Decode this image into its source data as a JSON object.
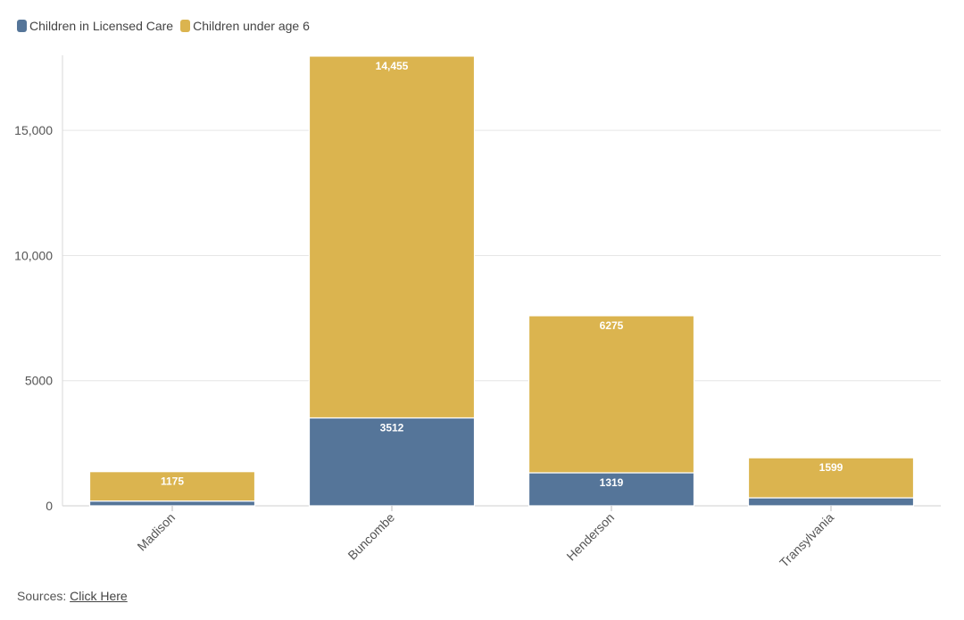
{
  "legend": {
    "items": [
      {
        "label": "Children in Licensed Care",
        "color": "#557599"
      },
      {
        "label": "Children under age 6",
        "color": "#dbb44f"
      }
    ]
  },
  "sources": {
    "label": "Sources:",
    "link_text": "Click Here"
  },
  "chart_data": {
    "type": "bar",
    "stacked": true,
    "categories": [
      "Madison",
      "Buncombe",
      "Henderson",
      "Transylvania"
    ],
    "series": [
      {
        "name": "Children in Licensed Care",
        "color": "#557599",
        "values": [
          190,
          3512,
          1319,
          320
        ],
        "labels": [
          "",
          "3512",
          "1319",
          ""
        ]
      },
      {
        "name": "Children under age 6",
        "color": "#dbb44f",
        "values": [
          1175,
          14455,
          6275,
          1599
        ],
        "labels": [
          "1175",
          "14,455",
          "6275",
          "1599"
        ]
      }
    ],
    "yticks": [
      0,
      5000,
      10000,
      15000
    ],
    "ytick_labels": [
      "0",
      "5000",
      "10,000",
      "15,000"
    ],
    "ylim": [
      0,
      18000
    ],
    "grid": true,
    "legend_position": "top-left",
    "xlabel": "",
    "ylabel": ""
  }
}
